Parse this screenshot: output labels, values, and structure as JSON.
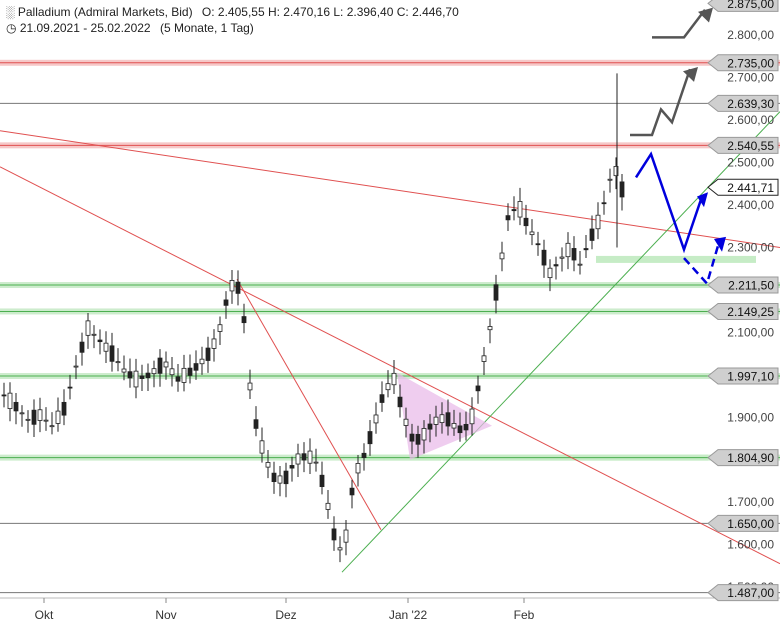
{
  "header": {
    "instrument": "Palladium (Admiral Markets, Bid)",
    "ohlc": "O: 2.405,55  H: 2.470,16  L: 2.396,40  C: 2.446,70",
    "range": "21.09.2021 - 25.02.2022",
    "period": "(5 Monate, 1 Tag)"
  },
  "chart_data": {
    "type": "candlestick",
    "y_ticks": [
      "2.800,00",
      "2.700,00",
      "2.600,00",
      "2.500,00",
      "2.400,00",
      "2.300,00",
      "2.100,00",
      "1.900,00",
      "1.700,00",
      "1.600,00",
      "1.500,00"
    ],
    "y_tick_values": [
      2800,
      2700,
      2600,
      2500,
      2400,
      2300,
      2100,
      1900,
      1700,
      1600,
      1500
    ],
    "x_labels": [
      "Okt",
      "Nov",
      "Dez",
      "Jan '22",
      "Feb"
    ],
    "levels": [
      {
        "label": "2.875,00",
        "value": 2875,
        "kind": "target"
      },
      {
        "label": "2.735,00",
        "value": 2735,
        "kind": "resistance"
      },
      {
        "label": "2.639,30",
        "value": 2639.3,
        "kind": "line"
      },
      {
        "label": "2.540,55",
        "value": 2540.55,
        "kind": "resistance"
      },
      {
        "label": "2.441,71",
        "value": 2441.71,
        "kind": "current"
      },
      {
        "label": "2.211,50",
        "value": 2211.5,
        "kind": "support"
      },
      {
        "label": "2.149,25",
        "value": 2149.25,
        "kind": "support"
      },
      {
        "label": "1.997,10",
        "value": 1997.1,
        "kind": "support"
      },
      {
        "label": "1.804,90",
        "value": 1804.9,
        "kind": "support"
      },
      {
        "label": "1.650,00",
        "value": 1650,
        "kind": "line"
      },
      {
        "label": "1.487,00",
        "value": 1487,
        "kind": "line"
      }
    ],
    "colors": {
      "resistance": "#e05050",
      "support": "#4caf50",
      "projection": "#0000dd",
      "target": "#555555",
      "triangle": "#e8b8e8"
    }
  }
}
